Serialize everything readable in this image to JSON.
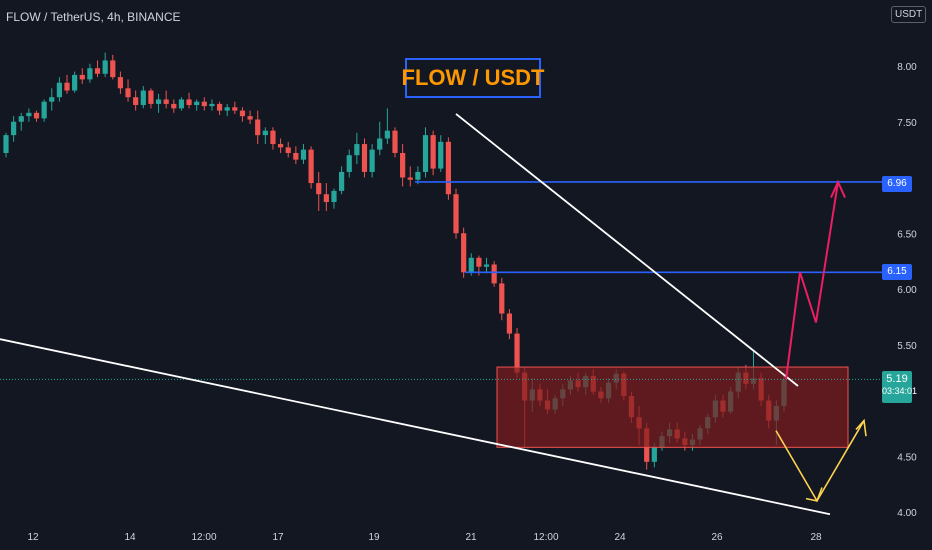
{
  "header": {
    "symbol": "FLOW / TetherUS, 4h, BINANCE",
    "title_box": "FLOW / USDT",
    "currency_badge": "USDT"
  },
  "price_axis": {
    "labels": [
      "8.00",
      "7.50",
      "6.50",
      "6.00",
      "5.50",
      "4.50",
      "4.00"
    ],
    "level_tags": [
      "6.96",
      "6.15"
    ],
    "last_price": "5.19",
    "countdown": "03:34:01"
  },
  "time_axis": {
    "labels": [
      "12",
      "14",
      "12:00",
      "17",
      "19",
      "21",
      "12:00",
      "24",
      "26",
      "28"
    ]
  },
  "colors": {
    "background": "#131722",
    "bull": "#26a69a",
    "bear": "#ef5350",
    "level_line": "#2962ff",
    "trendline": "#ffffff",
    "box_fill": "#7f1d1d",
    "projection": "#e91e63",
    "alt_projection": "#ffd54f",
    "title_text": "#ff9800"
  },
  "chart_data": {
    "type": "candlestick",
    "ylim": [
      4.0,
      8.5
    ],
    "y_ticks": [
      8.0,
      7.5,
      6.5,
      6.0,
      5.5,
      4.5,
      4.0
    ],
    "x_labels": [
      "12",
      "14",
      "12:00",
      "17",
      "19",
      "21",
      "12:00",
      "24",
      "26",
      "28"
    ],
    "horizontal_levels": [
      6.96,
      6.15
    ],
    "last_price": 5.19,
    "range_box": {
      "top": 5.3,
      "bottom": 4.58
    },
    "descending_trendline": [
      [
        21,
        7.57
      ],
      [
        27.5,
        5.13
      ]
    ],
    "support_trendline": [
      [
        11.5,
        5.55
      ],
      [
        28,
        3.98
      ]
    ],
    "projection_up": [
      5.19,
      6.15,
      5.7,
      6.96
    ],
    "projection_alt": [
      4.73,
      4.1,
      4.82
    ],
    "candles": [
      [
        7.22,
        7.4,
        7.18,
        7.38
      ],
      [
        7.38,
        7.55,
        7.32,
        7.5
      ],
      [
        7.5,
        7.58,
        7.42,
        7.55
      ],
      [
        7.55,
        7.62,
        7.5,
        7.58
      ],
      [
        7.58,
        7.6,
        7.5,
        7.53
      ],
      [
        7.53,
        7.7,
        7.5,
        7.68
      ],
      [
        7.68,
        7.8,
        7.6,
        7.72
      ],
      [
        7.72,
        7.9,
        7.68,
        7.85
      ],
      [
        7.85,
        7.92,
        7.75,
        7.78
      ],
      [
        7.78,
        7.95,
        7.76,
        7.92
      ],
      [
        7.92,
        7.98,
        7.84,
        7.88
      ],
      [
        7.88,
        8.02,
        7.85,
        7.98
      ],
      [
        7.98,
        8.05,
        7.9,
        7.93
      ],
      [
        7.93,
        8.12,
        7.9,
        8.05
      ],
      [
        8.05,
        8.1,
        7.88,
        7.9
      ],
      [
        7.9,
        7.95,
        7.75,
        7.8
      ],
      [
        7.8,
        7.88,
        7.68,
        7.72
      ],
      [
        7.72,
        7.78,
        7.6,
        7.65
      ],
      [
        7.65,
        7.82,
        7.62,
        7.78
      ],
      [
        7.78,
        7.8,
        7.62,
        7.66
      ],
      [
        7.66,
        7.75,
        7.58,
        7.7
      ],
      [
        7.7,
        7.78,
        7.62,
        7.66
      ],
      [
        7.66,
        7.7,
        7.58,
        7.62
      ],
      [
        7.62,
        7.72,
        7.6,
        7.7
      ],
      [
        7.7,
        7.76,
        7.62,
        7.65
      ],
      [
        7.65,
        7.7,
        7.6,
        7.68
      ],
      [
        7.68,
        7.72,
        7.6,
        7.64
      ],
      [
        7.64,
        7.7,
        7.6,
        7.66
      ],
      [
        7.66,
        7.68,
        7.56,
        7.6
      ],
      [
        7.6,
        7.66,
        7.55,
        7.63
      ],
      [
        7.63,
        7.68,
        7.57,
        7.6
      ],
      [
        7.6,
        7.63,
        7.5,
        7.55
      ],
      [
        7.55,
        7.6,
        7.48,
        7.52
      ],
      [
        7.52,
        7.6,
        7.3,
        7.38
      ],
      [
        7.38,
        7.45,
        7.3,
        7.42
      ],
      [
        7.42,
        7.45,
        7.25,
        7.3
      ],
      [
        7.3,
        7.35,
        7.22,
        7.27
      ],
      [
        7.27,
        7.32,
        7.18,
        7.22
      ],
      [
        7.22,
        7.28,
        7.12,
        7.16
      ],
      [
        7.16,
        7.3,
        7.12,
        7.25
      ],
      [
        7.25,
        7.28,
        6.9,
        6.95
      ],
      [
        6.95,
        7.05,
        6.7,
        6.85
      ],
      [
        6.85,
        6.95,
        6.7,
        6.78
      ],
      [
        6.78,
        6.9,
        6.72,
        6.88
      ],
      [
        6.88,
        7.1,
        6.85,
        7.05
      ],
      [
        7.05,
        7.25,
        7.0,
        7.2
      ],
      [
        7.2,
        7.4,
        7.12,
        7.3
      ],
      [
        7.3,
        7.35,
        7.0,
        7.05
      ],
      [
        7.05,
        7.3,
        7.0,
        7.25
      ],
      [
        7.25,
        7.5,
        7.2,
        7.35
      ],
      [
        7.35,
        7.62,
        7.3,
        7.42
      ],
      [
        7.42,
        7.45,
        7.18,
        7.22
      ],
      [
        7.22,
        7.3,
        6.92,
        7.0
      ],
      [
        7.0,
        7.1,
        6.92,
        6.98
      ],
      [
        6.98,
        7.1,
        6.94,
        7.05
      ],
      [
        7.05,
        7.45,
        7.0,
        7.38
      ],
      [
        7.38,
        7.42,
        7.02,
        7.08
      ],
      [
        7.08,
        7.38,
        7.05,
        7.32
      ],
      [
        7.32,
        7.36,
        6.8,
        6.85
      ],
      [
        6.85,
        6.9,
        6.45,
        6.5
      ],
      [
        6.5,
        6.55,
        6.1,
        6.15
      ],
      [
        6.15,
        6.32,
        6.12,
        6.28
      ],
      [
        6.28,
        6.3,
        6.12,
        6.2
      ],
      [
        6.2,
        6.28,
        6.14,
        6.22
      ],
      [
        6.22,
        6.25,
        6.02,
        6.05
      ],
      [
        6.05,
        6.1,
        5.72,
        5.78
      ],
      [
        5.78,
        5.82,
        5.55,
        5.6
      ],
      [
        5.6,
        5.65,
        5.2,
        5.25
      ],
      [
        5.25,
        5.3,
        4.58,
        5.0
      ],
      [
        5.0,
        5.2,
        4.9,
        5.1
      ],
      [
        5.1,
        5.15,
        4.95,
        5.0
      ],
      [
        5.0,
        5.1,
        4.88,
        4.92
      ],
      [
        4.92,
        5.05,
        4.88,
        5.02
      ],
      [
        5.02,
        5.15,
        4.95,
        5.1
      ],
      [
        5.1,
        5.22,
        5.05,
        5.18
      ],
      [
        5.18,
        5.25,
        5.08,
        5.12
      ],
      [
        5.12,
        5.25,
        5.05,
        5.22
      ],
      [
        5.22,
        5.28,
        5.05,
        5.08
      ],
      [
        5.08,
        5.12,
        4.98,
        5.02
      ],
      [
        5.02,
        5.2,
        4.98,
        5.16
      ],
      [
        5.16,
        5.28,
        5.1,
        5.24
      ],
      [
        5.24,
        5.26,
        5.0,
        5.04
      ],
      [
        5.04,
        5.08,
        4.8,
        4.85
      ],
      [
        4.85,
        4.95,
        4.6,
        4.75
      ],
      [
        4.75,
        4.8,
        4.38,
        4.45
      ],
      [
        4.45,
        4.62,
        4.4,
        4.58
      ],
      [
        4.58,
        4.72,
        4.55,
        4.68
      ],
      [
        4.68,
        4.8,
        4.62,
        4.74
      ],
      [
        4.74,
        4.8,
        4.62,
        4.66
      ],
      [
        4.66,
        4.72,
        4.55,
        4.6
      ],
      [
        4.6,
        4.7,
        4.55,
        4.65
      ],
      [
        4.65,
        4.78,
        4.6,
        4.75
      ],
      [
        4.75,
        4.88,
        4.7,
        4.85
      ],
      [
        4.85,
        5.05,
        4.8,
        5.0
      ],
      [
        5.0,
        5.05,
        4.85,
        4.9
      ],
      [
        4.9,
        5.12,
        4.88,
        5.08
      ],
      [
        5.08,
        5.3,
        5.02,
        5.25
      ],
      [
        5.25,
        5.32,
        5.1,
        5.15
      ],
      [
        5.15,
        5.45,
        5.1,
        5.2
      ],
      [
        5.2,
        5.25,
        4.95,
        5.0
      ],
      [
        5.0,
        5.05,
        4.75,
        4.82
      ],
      [
        4.82,
        5.0,
        4.6,
        4.95
      ],
      [
        4.95,
        5.22,
        4.9,
        5.19
      ]
    ]
  }
}
